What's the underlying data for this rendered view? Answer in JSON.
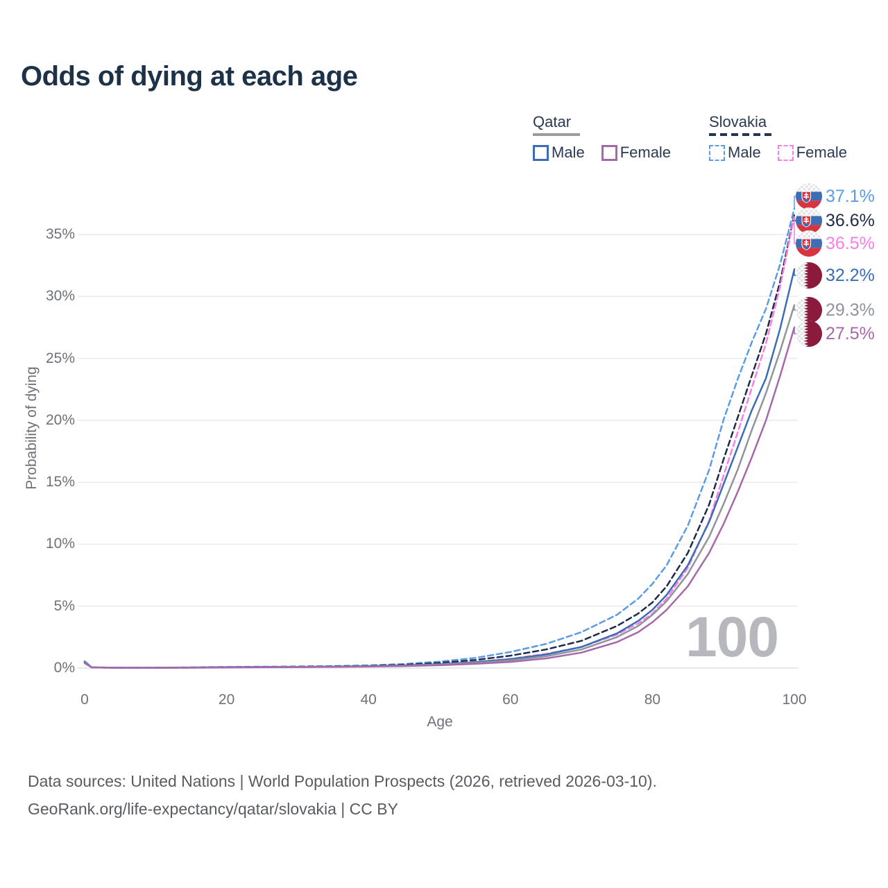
{
  "title": "Odds of dying at each age",
  "legend": {
    "groups": [
      {
        "country": "Qatar",
        "line_style": "solid",
        "underline_color": "#9b9ba1",
        "items": [
          {
            "label": "Male",
            "color": "#3b6db5"
          },
          {
            "label": "Female",
            "color": "#a768ab"
          }
        ]
      },
      {
        "country": "Slovakia",
        "line_style": "dashed",
        "underline_color": "#253352",
        "items": [
          {
            "label": "Male",
            "color": "#5b9ce4"
          },
          {
            "label": "Female",
            "color": "#fa7ee3"
          }
        ]
      }
    ]
  },
  "chart_data": {
    "type": "line",
    "title": "Odds of dying at each age",
    "xlabel": "Age",
    "ylabel": "Probability of dying",
    "xlim": [
      0,
      100
    ],
    "ylim_percent": [
      0,
      39
    ],
    "grid": "horizontal",
    "legend_position": "top-right",
    "x_ticks": [
      0,
      20,
      40,
      60,
      80,
      100
    ],
    "y_tick_values": [
      0,
      5,
      10,
      15,
      20,
      25,
      30,
      35
    ],
    "y_tick_labels": [
      "0%",
      "5%",
      "10%",
      "15%",
      "20%",
      "25%",
      "30%",
      "35%"
    ],
    "hover_age_indicator": "100",
    "x": [
      0,
      1,
      5,
      10,
      15,
      20,
      25,
      30,
      35,
      40,
      45,
      50,
      55,
      60,
      65,
      70,
      75,
      78,
      80,
      82,
      85,
      88,
      90,
      92,
      94,
      96,
      98,
      100
    ],
    "series": [
      {
        "name": "Slovakia Male",
        "country": "Slovakia",
        "sex": "male",
        "color": "#5b9ce4",
        "dashed": true,
        "end_label": "37.1%",
        "end_value": 37.1,
        "values": [
          0.55,
          0.06,
          0.03,
          0.03,
          0.06,
          0.1,
          0.11,
          0.13,
          0.16,
          0.22,
          0.33,
          0.52,
          0.82,
          1.3,
          1.95,
          2.9,
          4.3,
          5.6,
          6.8,
          8.3,
          11.5,
          16.0,
          20.0,
          23.3,
          26.3,
          29.0,
          32.6,
          37.1
        ]
      },
      {
        "name": "Slovakia",
        "country": "Slovakia",
        "sex": "all",
        "color": "#1f2b45",
        "dashed": true,
        "end_label": "36.6%",
        "end_value": 36.6,
        "values": [
          0.5,
          0.05,
          0.02,
          0.02,
          0.04,
          0.07,
          0.09,
          0.11,
          0.14,
          0.18,
          0.27,
          0.42,
          0.65,
          1.0,
          1.5,
          2.2,
          3.4,
          4.4,
          5.3,
          6.6,
          9.3,
          13.2,
          16.8,
          20.2,
          23.6,
          27.0,
          31.2,
          36.6
        ]
      },
      {
        "name": "Slovakia Female",
        "country": "Slovakia",
        "sex": "female",
        "color": "#fa7ee3",
        "dashed": true,
        "end_label": "36.5%",
        "end_value": 36.5,
        "values": [
          0.45,
          0.05,
          0.02,
          0.02,
          0.03,
          0.05,
          0.06,
          0.08,
          0.11,
          0.15,
          0.21,
          0.32,
          0.5,
          0.75,
          1.15,
          1.7,
          2.7,
          3.6,
          4.4,
          5.6,
          8.1,
          11.9,
          15.5,
          19.0,
          22.6,
          26.2,
          30.8,
          36.5
        ]
      },
      {
        "name": "Qatar Male",
        "country": "Qatar",
        "sex": "male",
        "color": "#3b6db5",
        "dashed": false,
        "end_label": "32.2%",
        "end_value": 32.2,
        "values": [
          0.5,
          0.06,
          0.03,
          0.03,
          0.05,
          0.08,
          0.09,
          0.1,
          0.12,
          0.16,
          0.22,
          0.32,
          0.48,
          0.72,
          1.1,
          1.7,
          2.8,
          3.8,
          4.7,
          5.9,
          8.3,
          11.8,
          14.8,
          17.8,
          20.8,
          23.4,
          27.4,
          32.2
        ]
      },
      {
        "name": "Qatar",
        "country": "Qatar",
        "sex": "all",
        "color": "#90949c",
        "dashed": false,
        "end_label": "29.3%",
        "end_value": 29.3,
        "values": [
          0.45,
          0.05,
          0.02,
          0.02,
          0.04,
          0.06,
          0.08,
          0.09,
          0.11,
          0.14,
          0.19,
          0.28,
          0.42,
          0.62,
          0.95,
          1.5,
          2.5,
          3.4,
          4.3,
          5.4,
          7.6,
          10.6,
          13.2,
          16.0,
          19.2,
          22.2,
          25.6,
          29.3
        ]
      },
      {
        "name": "Qatar Female",
        "country": "Qatar",
        "sex": "female",
        "color": "#a768ab",
        "dashed": false,
        "end_label": "27.5%",
        "end_value": 27.5,
        "values": [
          0.4,
          0.05,
          0.02,
          0.02,
          0.03,
          0.05,
          0.07,
          0.08,
          0.1,
          0.12,
          0.16,
          0.23,
          0.34,
          0.5,
          0.78,
          1.25,
          2.1,
          2.9,
          3.7,
          4.7,
          6.6,
          9.3,
          11.6,
          14.2,
          17.0,
          20.0,
          23.6,
          27.5
        ]
      }
    ]
  },
  "footer": {
    "line1": "Data sources: United Nations | World Population Prospects (2026, retrieved 2026-03-10).",
    "line2": "GeoRank.org/life-expectancy/qatar/slovakia | CC BY"
  }
}
